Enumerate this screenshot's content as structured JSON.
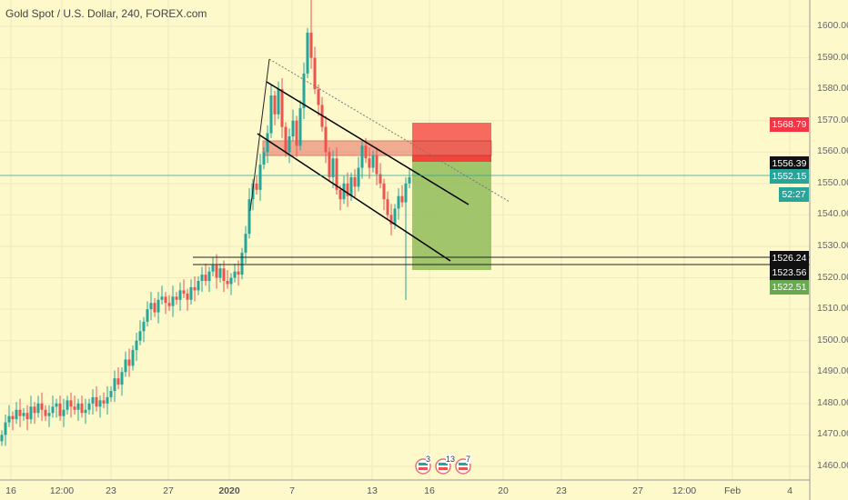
{
  "title": "Gold Spot / U.S. Dollar, 240, FOREX.com",
  "chart_data": {
    "type": "candlestick",
    "symbol": "XAUUSD",
    "interval": "240",
    "ylim": [
      1455,
      1610
    ],
    "y_ticks": [
      1460,
      1470,
      1480,
      1490,
      1500,
      1510,
      1520,
      1530,
      1540,
      1550,
      1560,
      1570,
      1580,
      1590,
      1600
    ],
    "x_labels": [
      "16",
      "12:00",
      "23",
      "27",
      "2020",
      "7",
      "13",
      "16",
      "20",
      "23",
      "27",
      "12:00",
      "Feb",
      "4"
    ],
    "closes": [
      1470,
      1474,
      1476,
      1475,
      1478,
      1476,
      1477,
      1475,
      1479,
      1477,
      1480,
      1478,
      1476,
      1477,
      1479,
      1480,
      1476,
      1478,
      1481,
      1479,
      1478,
      1480,
      1477,
      1478,
      1480,
      1482,
      1479,
      1481,
      1480,
      1482,
      1484,
      1488,
      1486,
      1490,
      1494,
      1492,
      1497,
      1500,
      1503,
      1506,
      1510,
      1512,
      1509,
      1513,
      1514,
      1512,
      1511,
      1514,
      1513,
      1516,
      1515,
      1513,
      1517,
      1516,
      1519,
      1521,
      1519,
      1522,
      1524,
      1520,
      1523,
      1519,
      1518,
      1520,
      1522,
      1521,
      1528,
      1534,
      1545,
      1550,
      1548,
      1556,
      1560,
      1566,
      1578,
      1572,
      1580,
      1568,
      1560,
      1565,
      1570,
      1562,
      1574,
      1585,
      1598,
      1590,
      1580,
      1575,
      1568,
      1560,
      1552,
      1558,
      1548,
      1545,
      1550,
      1546,
      1552,
      1549,
      1555,
      1562,
      1558,
      1555,
      1559,
      1553,
      1550,
      1545,
      1540,
      1537,
      1542,
      1546,
      1544,
      1550,
      1552
    ],
    "price_labels": [
      {
        "text": "1568.79",
        "color": "#f23645",
        "price": 1568.79
      },
      {
        "text": "1556.39",
        "color": "#111111",
        "price": 1556.39
      },
      {
        "text": "1552.15",
        "color": "#26a69a",
        "price": 1552.15
      },
      {
        "text": "52:27",
        "color": "#26a69a",
        "price": 1546.6
      },
      {
        "text": "1526.24",
        "color": "#111111",
        "price": 1526.24
      },
      {
        "text": "1523.56",
        "color": "#111111",
        "price": 1521.6
      },
      {
        "text": "1522.51",
        "color": "#6aa84f",
        "price": 1517.0
      }
    ],
    "events": [
      "3",
      "13",
      "7"
    ],
    "colors": {
      "up": "#26a69a",
      "down": "#ef5350",
      "bg": "#fdf9cb"
    }
  }
}
